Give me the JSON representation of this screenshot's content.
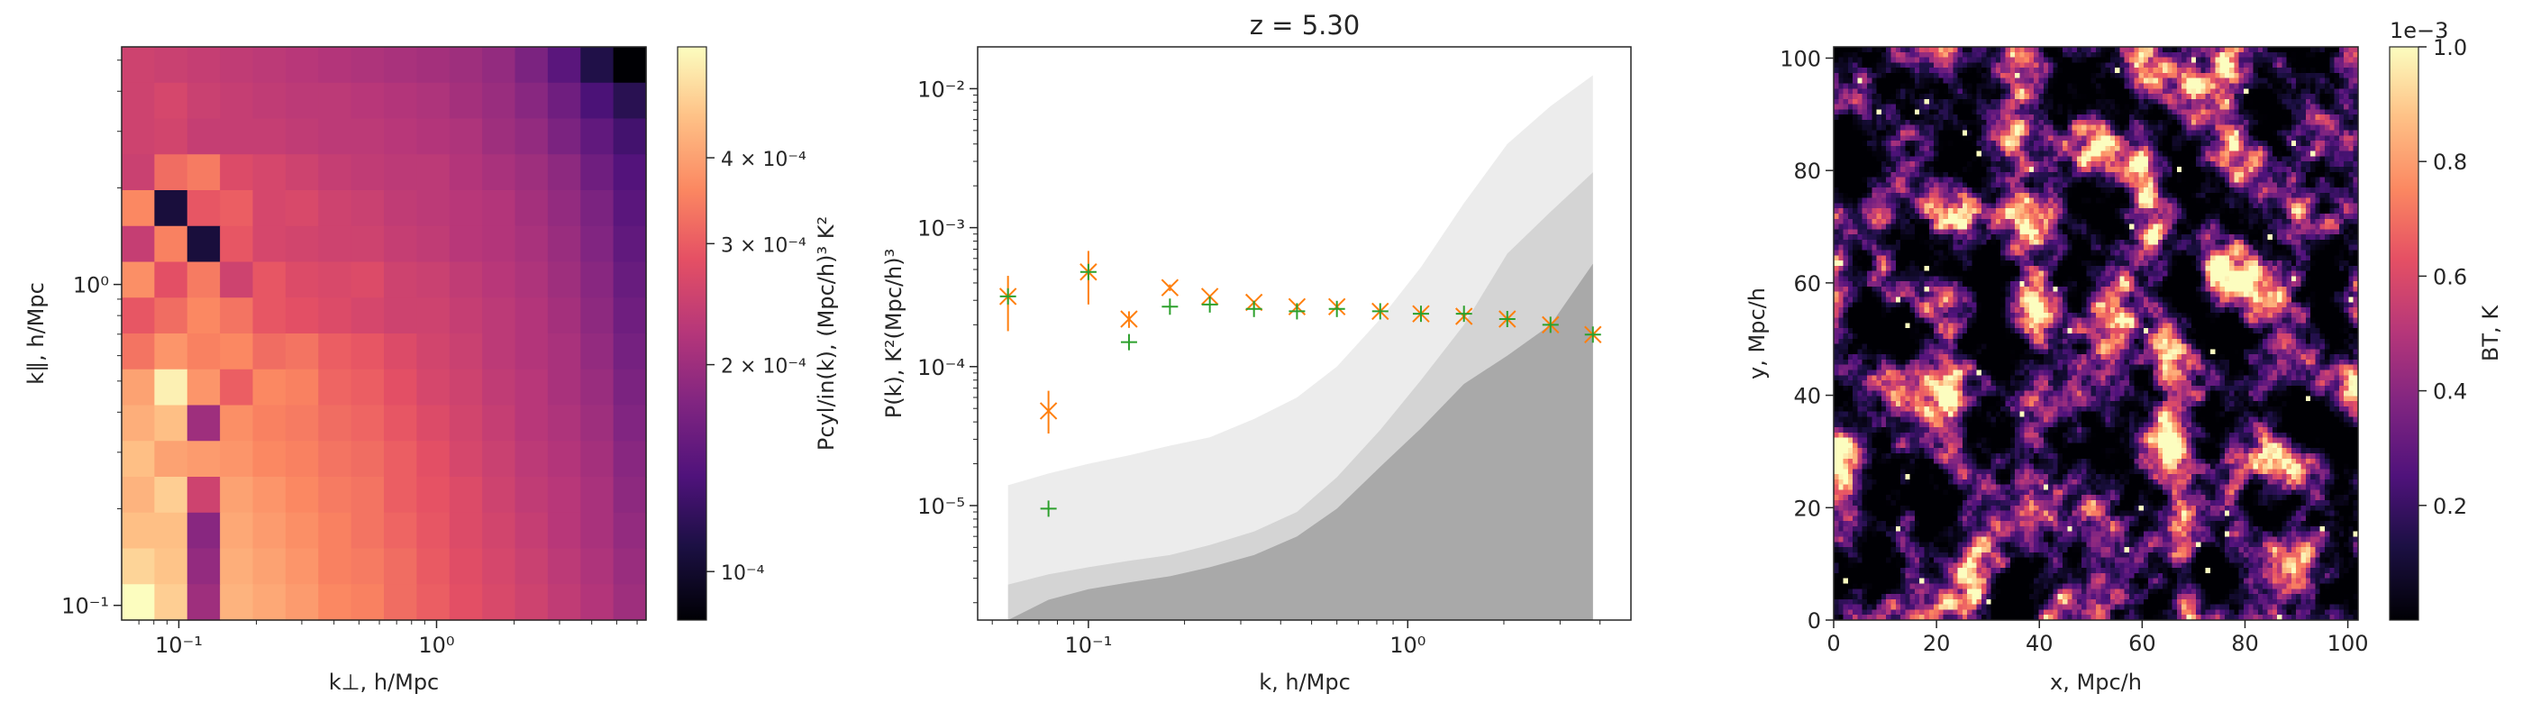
{
  "chart_data": [
    {
      "type": "heatmap",
      "title": "",
      "xlabel": "k⊥, h/Mpc",
      "ylabel": "k∥, h/Mpc",
      "x_scale": "log",
      "y_scale": "log",
      "xlim": [
        0.06,
        6.5
      ],
      "ylim": [
        0.09,
        5.5
      ],
      "x_ticks": [
        {
          "value": 0.1,
          "label": "10⁻¹"
        },
        {
          "value": 1,
          "label": "10⁰"
        }
      ],
      "y_ticks": [
        {
          "value": 0.1,
          "label": "10⁻¹"
        },
        {
          "value": 1,
          "label": "10⁰"
        }
      ],
      "colormap": "magma",
      "colorbar": {
        "label": "Pcyl/in(k), (Mpc/h)³ K²",
        "scale": "log",
        "range": [
          8.5e-05,
          0.00058
        ],
        "ticks": [
          {
            "value": 0.0001,
            "label": "10⁻⁴"
          },
          {
            "value": 0.0002,
            "label": "2 × 10⁻⁴"
          },
          {
            "value": 0.0003,
            "label": "3 × 10⁻⁴"
          },
          {
            "value": 0.0004,
            "label": "4 × 10⁻⁴"
          }
        ]
      },
      "grid": {
        "cols": 16,
        "rows": 16,
        "x_edges_range": [
          0.06,
          6.5
        ],
        "y_edges_range": [
          0.09,
          5.5
        ]
      },
      "values_note": "rows ordered from top (highest k∥) to bottom, columns from left (lowest k⊥) to right",
      "values": [
        [
          0.00025,
          0.000245,
          0.00024,
          0.000235,
          0.00023,
          0.000225,
          0.00022,
          0.000215,
          0.00021,
          0.000205,
          0.0002,
          0.00019,
          0.00017,
          0.000145,
          0.00011,
          8.5e-05
        ],
        [
          0.00025,
          0.00026,
          0.000245,
          0.00024,
          0.000235,
          0.00023,
          0.00023,
          0.000225,
          0.00022,
          0.000215,
          0.000205,
          0.000195,
          0.00018,
          0.00016,
          0.000135,
          0.000115
        ],
        [
          0.00025,
          0.000255,
          0.00024,
          0.00024,
          0.00024,
          0.000235,
          0.00023,
          0.00023,
          0.000225,
          0.00022,
          0.000215,
          0.0002,
          0.00019,
          0.00017,
          0.00015,
          0.00013
        ],
        [
          0.000245,
          0.00032,
          0.00034,
          0.00027,
          0.00026,
          0.00025,
          0.00024,
          0.000235,
          0.00023,
          0.00023,
          0.00022,
          0.00021,
          0.0002,
          0.000185,
          0.00016,
          0.00014
        ],
        [
          0.00036,
          0.000105,
          0.00029,
          0.0003,
          0.00026,
          0.000265,
          0.00025,
          0.000245,
          0.000235,
          0.00023,
          0.000225,
          0.00022,
          0.000205,
          0.00019,
          0.00017,
          0.000145
        ],
        [
          0.00024,
          0.00035,
          0.000105,
          0.00029,
          0.00026,
          0.000255,
          0.00025,
          0.00025,
          0.00024,
          0.000235,
          0.000225,
          0.00022,
          0.00021,
          0.000195,
          0.000175,
          0.00015
        ],
        [
          0.00037,
          0.00028,
          0.00034,
          0.00025,
          0.00029,
          0.00027,
          0.000265,
          0.00027,
          0.00025,
          0.000245,
          0.000235,
          0.000225,
          0.000215,
          0.0002,
          0.00018,
          0.000155
        ],
        [
          0.00029,
          0.00032,
          0.00036,
          0.00033,
          0.00029,
          0.00028,
          0.00027,
          0.00026,
          0.00025,
          0.00025,
          0.00024,
          0.00023,
          0.00022,
          0.000205,
          0.000185,
          0.00016
        ],
        [
          0.00033,
          0.00038,
          0.00035,
          0.00036,
          0.00032,
          0.00033,
          0.0003,
          0.00029,
          0.00027,
          0.000255,
          0.000245,
          0.00023,
          0.00022,
          0.00021,
          0.00019,
          0.000165
        ],
        [
          0.0004,
          0.00055,
          0.00038,
          0.0003,
          0.00036,
          0.00035,
          0.00031,
          0.0003,
          0.00028,
          0.00026,
          0.00025,
          0.000235,
          0.000225,
          0.00021,
          0.000195,
          0.00017
        ],
        [
          0.00042,
          0.00045,
          0.0002,
          0.00037,
          0.00035,
          0.00034,
          0.00032,
          0.00031,
          0.00029,
          0.00027,
          0.000255,
          0.00024,
          0.000225,
          0.000215,
          0.0002,
          0.000175
        ],
        [
          0.00045,
          0.0004,
          0.00039,
          0.00038,
          0.00036,
          0.00035,
          0.00033,
          0.00032,
          0.0003,
          0.00028,
          0.00026,
          0.000245,
          0.00023,
          0.00022,
          0.000205,
          0.00018
        ],
        [
          0.00043,
          0.00048,
          0.00025,
          0.0004,
          0.00038,
          0.00036,
          0.00034,
          0.00033,
          0.0003,
          0.000285,
          0.00027,
          0.00025,
          0.000235,
          0.000225,
          0.00021,
          0.000185
        ],
        [
          0.00045,
          0.00045,
          0.00018,
          0.00041,
          0.00039,
          0.00037,
          0.00035,
          0.00033,
          0.00031,
          0.00029,
          0.00027,
          0.000255,
          0.00024,
          0.000225,
          0.00021,
          0.00019
        ],
        [
          0.00049,
          0.00046,
          0.00019,
          0.00042,
          0.0004,
          0.00038,
          0.00035,
          0.00034,
          0.00032,
          0.000295,
          0.000275,
          0.00026,
          0.000245,
          0.00023,
          0.000215,
          0.000195
        ],
        [
          0.00058,
          0.00048,
          0.0002,
          0.00043,
          0.00041,
          0.00039,
          0.00036,
          0.00035,
          0.00032,
          0.0003,
          0.00028,
          0.000265,
          0.00025,
          0.000235,
          0.00022,
          0.0002
        ]
      ]
    },
    {
      "type": "scatter",
      "title": "z = 5.30",
      "xlabel": "k, h/Mpc",
      "ylabel": "P(k), K²(Mpc/h)³",
      "x_scale": "log",
      "y_scale": "log",
      "xlim": [
        0.045,
        5.0
      ],
      "ylim": [
        1.5e-06,
        0.02
      ],
      "x_ticks": [
        {
          "value": 0.1,
          "label": "10⁻¹"
        },
        {
          "value": 1,
          "label": "10⁰"
        }
      ],
      "y_ticks": [
        {
          "value": 1e-05,
          "label": "10⁻⁵"
        },
        {
          "value": 0.0001,
          "label": "10⁻⁴"
        },
        {
          "value": 0.001,
          "label": "10⁻³"
        },
        {
          "value": 0.01,
          "label": "10⁻²"
        }
      ],
      "series": [
        {
          "marker": "x",
          "color": "#ff7f0e",
          "points": [
            {
              "x": 0.056,
              "y": 0.00032,
              "ylo": 0.00018,
              "yhi": 0.00045
            },
            {
              "x": 0.075,
              "y": 4.8e-05,
              "ylo": 3.3e-05,
              "yhi": 6.7e-05
            },
            {
              "x": 0.1,
              "y": 0.00048,
              "ylo": 0.00028,
              "yhi": 0.00068
            },
            {
              "x": 0.134,
              "y": 0.00022,
              "ylo": 0.00019,
              "yhi": 0.00025
            },
            {
              "x": 0.18,
              "y": 0.00037,
              "ylo": 0.00035,
              "yhi": 0.00039
            },
            {
              "x": 0.24,
              "y": 0.00032
            },
            {
              "x": 0.33,
              "y": 0.00029
            },
            {
              "x": 0.45,
              "y": 0.00027
            },
            {
              "x": 0.6,
              "y": 0.00027
            },
            {
              "x": 0.82,
              "y": 0.00025
            },
            {
              "x": 1.1,
              "y": 0.00024
            },
            {
              "x": 1.5,
              "y": 0.00023
            },
            {
              "x": 2.05,
              "y": 0.00022
            },
            {
              "x": 2.8,
              "y": 0.0002
            },
            {
              "x": 3.8,
              "y": 0.00017
            }
          ]
        },
        {
          "marker": "+",
          "color": "#2ca02c",
          "points": [
            {
              "x": 0.056,
              "y": 0.00032
            },
            {
              "x": 0.075,
              "y": 9.5e-06
            },
            {
              "x": 0.1,
              "y": 0.00048
            },
            {
              "x": 0.134,
              "y": 0.00015
            },
            {
              "x": 0.18,
              "y": 0.00027
            },
            {
              "x": 0.24,
              "y": 0.00028
            },
            {
              "x": 0.33,
              "y": 0.00026
            },
            {
              "x": 0.45,
              "y": 0.00025
            },
            {
              "x": 0.6,
              "y": 0.00026
            },
            {
              "x": 0.82,
              "y": 0.00025
            },
            {
              "x": 1.1,
              "y": 0.00024
            },
            {
              "x": 1.5,
              "y": 0.00024
            },
            {
              "x": 2.05,
              "y": 0.00022
            },
            {
              "x": 2.8,
              "y": 0.0002
            },
            {
              "x": 3.8,
              "y": 0.00017
            }
          ]
        }
      ],
      "bands": [
        {
          "color": "#ececec",
          "x": [
            0.056,
            0.075,
            0.1,
            0.134,
            0.18,
            0.24,
            0.33,
            0.45,
            0.6,
            0.82,
            1.1,
            1.5,
            2.05,
            2.8,
            3.8
          ],
          "y": [
            1.4e-05,
            1.7e-05,
            2e-05,
            2.3e-05,
            2.7e-05,
            3.1e-05,
            4.2e-05,
            6e-05,
            0.0001,
            0.00022,
            0.00052,
            0.0015,
            0.004,
            0.0075,
            0.0125
          ]
        },
        {
          "color": "#d4d4d4",
          "x": [
            0.056,
            0.075,
            0.1,
            0.134,
            0.18,
            0.24,
            0.33,
            0.45,
            0.6,
            0.82,
            1.1,
            1.5,
            2.05,
            2.8,
            3.8
          ],
          "y": [
            2.7e-06,
            3.2e-06,
            3.6e-06,
            4e-06,
            4.4e-06,
            5.2e-06,
            6.5e-06,
            9e-06,
            1.6e-05,
            3.5e-05,
            8e-05,
            0.0002,
            0.00065,
            0.0013,
            0.0025
          ]
        },
        {
          "color": "#a9a9a9",
          "x": [
            0.056,
            0.075,
            0.1,
            0.134,
            0.18,
            0.24,
            0.33,
            0.45,
            0.6,
            0.82,
            1.1,
            1.5,
            2.05,
            2.8,
            3.8
          ],
          "y": [
            1.5e-06,
            2.1e-06,
            2.5e-06,
            2.8e-06,
            3.1e-06,
            3.6e-06,
            4.4e-06,
            6e-06,
            9.5e-06,
            1.9e-05,
            3.6e-05,
            7.5e-05,
            0.00012,
            0.0002,
            0.00055
          ]
        }
      ]
    },
    {
      "type": "heatmap",
      "title": "",
      "xlabel": "x, Mpc/h",
      "ylabel": "y, Mpc/h",
      "xlim": [
        0,
        102
      ],
      "ylim": [
        0,
        102
      ],
      "x_ticks": [
        0,
        20,
        40,
        60,
        80,
        100
      ],
      "y_ticks": [
        0,
        20,
        40,
        60,
        80,
        100
      ],
      "colormap": "magma",
      "colorbar": {
        "label": "BT, K",
        "offset_label": "1e−3",
        "range": [
          0.0,
          1.0
        ],
        "ticks": [
          "0.2",
          "0.4",
          "0.6",
          "0.8",
          "1.0"
        ]
      }
    }
  ]
}
